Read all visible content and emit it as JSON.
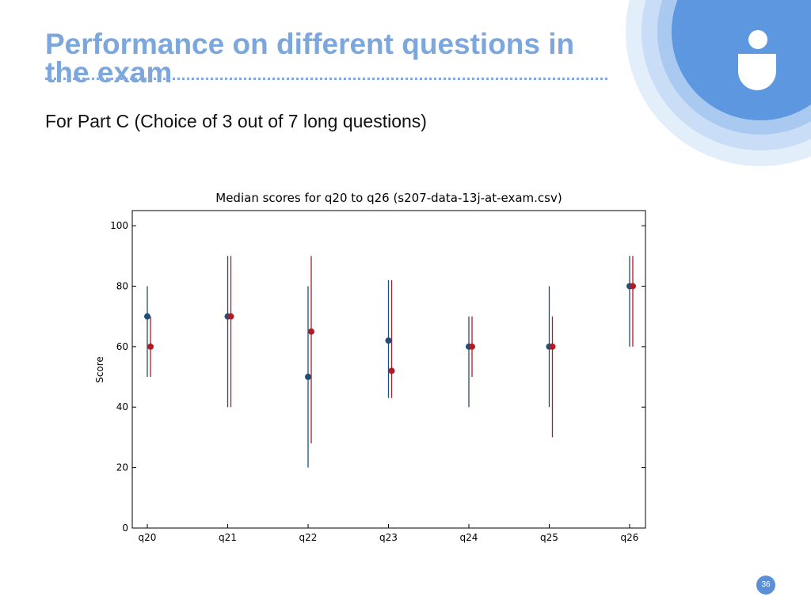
{
  "title": "Performance on different questions in the exam",
  "subtitle": "For Part C (Choice of 3 out of 7 long questions)",
  "page_number": "36",
  "chart_data": {
    "type": "errorbar",
    "title": "Median scores for q20 to q26 (s207-data-13j-at-exam.csv)",
    "y_label": "Score",
    "categories": [
      "q20",
      "q21",
      "q22",
      "q23",
      "q24",
      "q25",
      "q26"
    ],
    "series": [
      {
        "color": "#1f4e79",
        "values": [
          70,
          70,
          50,
          62,
          60,
          60,
          80
        ],
        "low": [
          50,
          40,
          20,
          43,
          40,
          40,
          60
        ],
        "high": [
          80,
          90,
          80,
          82,
          70,
          80,
          90
        ]
      },
      {
        "color": "#b01c24",
        "values": [
          60,
          70,
          65,
          52,
          60,
          60,
          80
        ],
        "low": [
          50,
          40,
          28,
          43,
          50,
          30,
          60
        ],
        "high": [
          70,
          90,
          90,
          82,
          70,
          70,
          90
        ]
      }
    ],
    "ylim": [
      0,
      105
    ],
    "yticks": [
      0,
      20,
      40,
      60,
      80,
      100
    ]
  }
}
